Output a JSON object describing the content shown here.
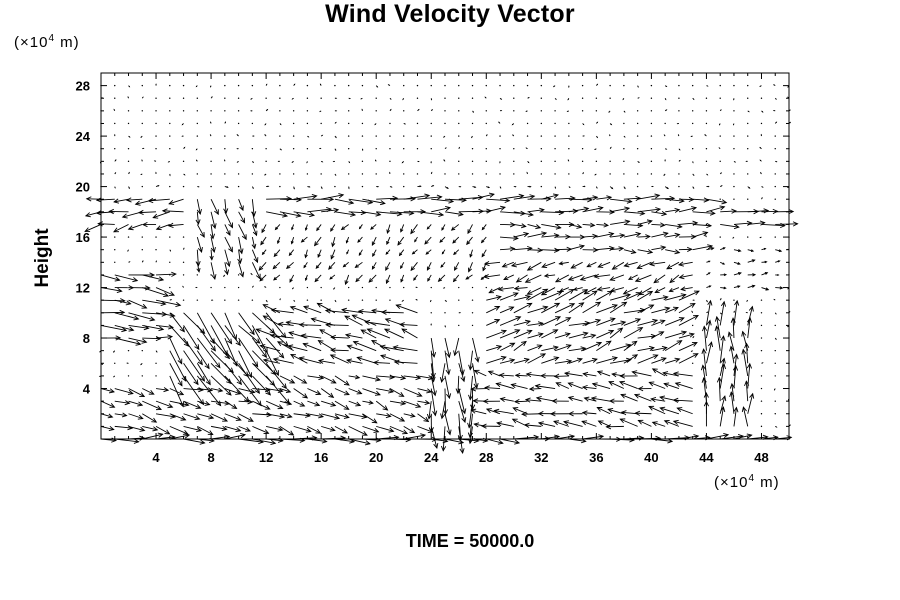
{
  "chart_data": {
    "type": "quiver",
    "title": "Wind Velocity Vector",
    "ylabel": "Height",
    "y_unit": {
      "prefix": "(×10",
      "exp": "4",
      "suffix": " m)"
    },
    "x_unit": {
      "prefix": "(×10",
      "exp": "4",
      "suffix": " m)"
    },
    "xlim": [
      0,
      50
    ],
    "ylim": [
      0,
      29
    ],
    "xticks": [
      4,
      8,
      12,
      16,
      20,
      24,
      28,
      32,
      36,
      40,
      44,
      48
    ],
    "yticks": [
      4,
      8,
      12,
      16,
      20,
      24,
      28
    ],
    "grid_dx": 1,
    "grid_dy": 1,
    "field_regions": [
      {
        "x": [
          0,
          50
        ],
        "y": [
          20,
          21
        ],
        "u": 0.15,
        "v": -0.05
      },
      {
        "x": [
          0,
          50
        ],
        "y": [
          21,
          29
        ],
        "u": 0.0,
        "v": 0.0
      },
      {
        "x": [
          0,
          7
        ],
        "y": [
          17,
          20
        ],
        "u": -1.6,
        "v": -0.3
      },
      {
        "x": [
          7,
          12
        ],
        "y": [
          14,
          20
        ],
        "u": 0.4,
        "v": -1.2
      },
      {
        "x": [
          12,
          30
        ],
        "y": [
          18,
          20
        ],
        "u": 1.9,
        "v": 0.0
      },
      {
        "x": [
          30,
          45
        ],
        "y": [
          18,
          20
        ],
        "u": 1.7,
        "v": 0.05
      },
      {
        "x": [
          45,
          50
        ],
        "y": [
          17,
          19
        ],
        "u": 1.8,
        "v": 0.05
      },
      {
        "x": [
          29,
          44
        ],
        "y": [
          15,
          18
        ],
        "u": 1.4,
        "v": 0.05
      },
      {
        "x": [
          12,
          29
        ],
        "y": [
          13,
          18
        ],
        "u": -0.4,
        "v": -0.6
      },
      {
        "x": [
          29,
          44
        ],
        "y": [
          12,
          15
        ],
        "u": -1.1,
        "v": -0.4
      },
      {
        "x": [
          44,
          50
        ],
        "y": [
          12,
          16
        ],
        "u": 0.5,
        "v": 0.0
      },
      {
        "x": [
          0,
          5
        ],
        "y": [
          8,
          14
        ],
        "u": 1.9,
        "v": -0.3
      },
      {
        "x": [
          5,
          13
        ],
        "y": [
          2,
          11
        ],
        "u": 1.6,
        "v": -2.2
      },
      {
        "x": [
          13,
          24
        ],
        "y": [
          6,
          11
        ],
        "u": -1.8,
        "v": 0.5
      },
      {
        "x": [
          24,
          28
        ],
        "y": [
          1,
          9
        ],
        "u": 0.1,
        "v": -2.0
      },
      {
        "x": [
          28,
          43
        ],
        "y": [
          6,
          12
        ],
        "u": 1.5,
        "v": 0.6
      },
      {
        "x": [
          44,
          48
        ],
        "y": [
          1,
          10
        ],
        "u": 0.0,
        "v": 2.0
      },
      {
        "x": [
          0,
          13
        ],
        "y": [
          0,
          5
        ],
        "u": 1.4,
        "v": -0.4
      },
      {
        "x": [
          13,
          24
        ],
        "y": [
          1,
          6
        ],
        "u": 1.3,
        "v": -0.5
      },
      {
        "x": [
          28,
          44
        ],
        "y": [
          1,
          6
        ],
        "u": -1.4,
        "v": 0.3
      },
      {
        "x": [
          0,
          50
        ],
        "y": [
          0,
          1
        ],
        "u": 1.8,
        "v": 0.0
      }
    ]
  },
  "footer": {
    "time_text": "TIME = 50000.0"
  }
}
